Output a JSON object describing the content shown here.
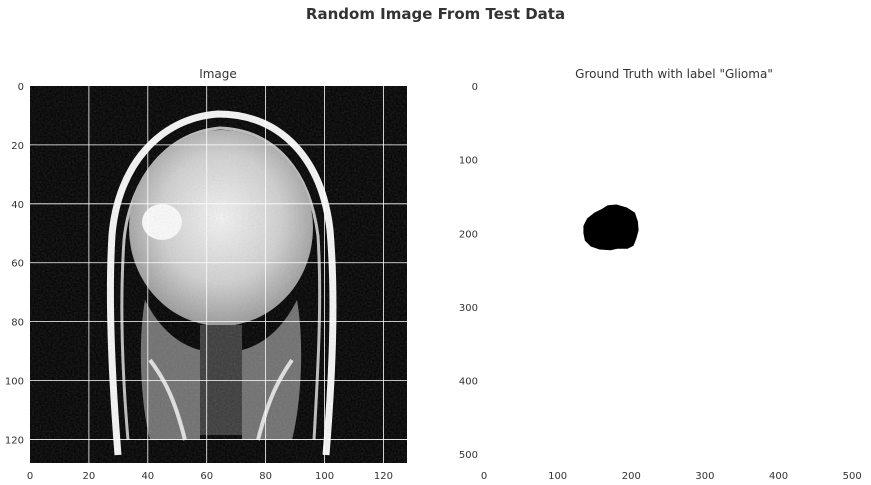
{
  "figure": {
    "suptitle": "Random Image From Test Data"
  },
  "chart_data": [
    {
      "type": "heatmap",
      "title": "Image",
      "xlabel": "",
      "ylabel": "",
      "xlim": [
        0,
        128
      ],
      "ylim": [
        128,
        0
      ],
      "xticks": [
        0,
        20,
        40,
        60,
        80,
        100,
        120
      ],
      "yticks": [
        0,
        20,
        40,
        60,
        80,
        100,
        120
      ],
      "grid": true,
      "colormap": "gray",
      "content": "brain MRI coronal slice (128x128 grayscale)"
    },
    {
      "type": "heatmap",
      "title": "Ground Truth with label \"Glioma\"",
      "xlabel": "",
      "ylabel": "",
      "xlim": [
        0,
        512
      ],
      "ylim": [
        512,
        0
      ],
      "xticks": [
        0,
        100,
        200,
        300,
        400,
        500
      ],
      "yticks": [
        0,
        100,
        200,
        300,
        400,
        500
      ],
      "grid": false,
      "colormap": "binary",
      "mask_polygon": [
        [
          135,
          190
        ],
        [
          140,
          180
        ],
        [
          150,
          172
        ],
        [
          160,
          167
        ],
        [
          168,
          162
        ],
        [
          180,
          161
        ],
        [
          194,
          165
        ],
        [
          205,
          172
        ],
        [
          209,
          184
        ],
        [
          210,
          196
        ],
        [
          207,
          207
        ],
        [
          203,
          217
        ],
        [
          195,
          221
        ],
        [
          181,
          221
        ],
        [
          172,
          223
        ],
        [
          157,
          222
        ],
        [
          145,
          218
        ],
        [
          137,
          210
        ],
        [
          135,
          200
        ]
      ]
    }
  ]
}
